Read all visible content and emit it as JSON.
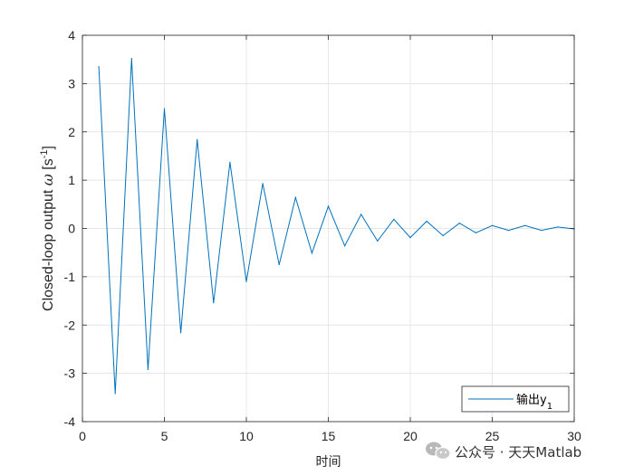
{
  "chart_data": {
    "type": "line",
    "title": "",
    "xlabel": "时间",
    "ylabel": "Closed-loop output ω [s⁻¹]",
    "ylabel_parts": {
      "main": "Closed-loop output ",
      "omega": "ω",
      "unit_open": " [s",
      "unit_sup": "-1",
      "unit_close": "]"
    },
    "xlim": [
      0,
      30
    ],
    "ylim": [
      -4,
      4
    ],
    "xticks": [
      0,
      5,
      10,
      15,
      20,
      25,
      30
    ],
    "yticks": [
      -4,
      -3,
      -2,
      -1,
      0,
      1,
      2,
      3,
      4
    ],
    "grid": true,
    "legend_location": "bottom-right",
    "series": [
      {
        "name": "输出y1",
        "name_parts": {
          "base": "输出y",
          "sub": "1"
        },
        "color": "#0072BD",
        "x": [
          1,
          2,
          3,
          4,
          5,
          6,
          7,
          8,
          9,
          10,
          11,
          12,
          13,
          14,
          15,
          16,
          17,
          18,
          19,
          20,
          21,
          22,
          23,
          24,
          25,
          26,
          27,
          28,
          29,
          30
        ],
        "values": [
          3.35,
          -3.42,
          3.52,
          -2.92,
          2.48,
          -2.16,
          1.84,
          -1.54,
          1.37,
          -1.1,
          0.93,
          -0.75,
          0.64,
          -0.51,
          0.46,
          -0.36,
          0.29,
          -0.26,
          0.19,
          -0.19,
          0.15,
          -0.15,
          0.11,
          -0.09,
          0.06,
          -0.04,
          0.06,
          -0.04,
          0.03,
          -0.01
        ]
      }
    ]
  },
  "watermark": {
    "text": "公众号 · 天天Matlab",
    "icon": "wechat-icon"
  }
}
